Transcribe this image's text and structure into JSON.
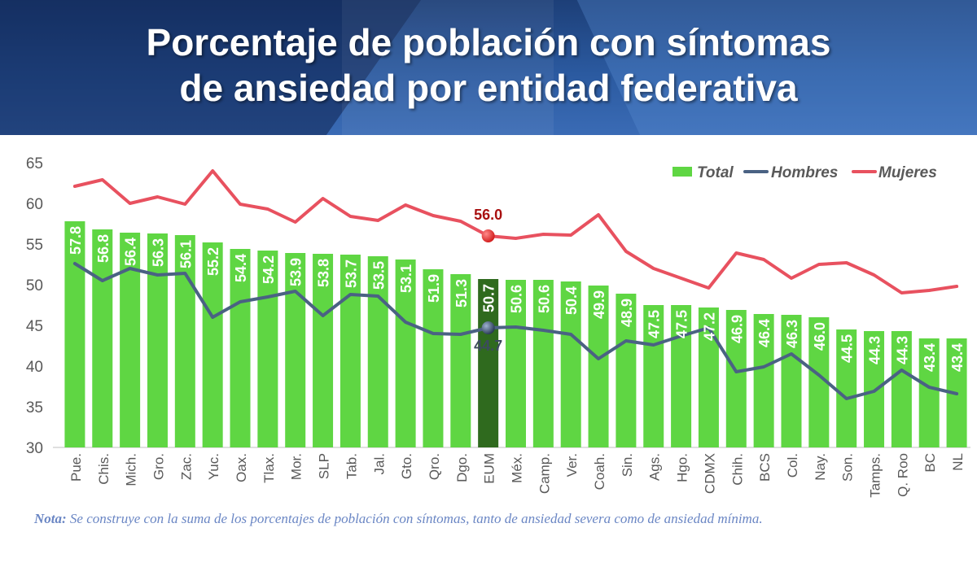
{
  "header": {
    "title_line1": "Porcentaje de población con síntomas",
    "title_line2": "de ansiedad por entidad federativa"
  },
  "note": {
    "label": "Nota:",
    "text": " Se construye con la suma de los porcentajes de población con síntomas, tanto de ansiedad severa como de ansiedad mínima."
  },
  "colors": {
    "total_bar": "#5fd643",
    "highlight_bar": "#2f6a1e",
    "hombres": "#4a6283",
    "mujeres": "#e8515f",
    "highlight_mujeres_dot": "#d01818",
    "highlight_mujeres_label": "#a81010",
    "axis_text": "#595959"
  },
  "chart_data": {
    "type": "bar",
    "categories": [
      "Pue.",
      "Chis.",
      "Mich.",
      "Gro.",
      "Zac.",
      "Yuc.",
      "Oax.",
      "Tlax.",
      "Mor.",
      "SLP",
      "Tab.",
      "Jal.",
      "Gto.",
      "Qro.",
      "Dgo.",
      "EUM",
      "Méx.",
      "Camp.",
      "Ver.",
      "Coah.",
      "Sin.",
      "Ags.",
      "Hgo.",
      "CDMX",
      "Chih.",
      "BCS",
      "Col.",
      "Nay.",
      "Son.",
      "Tamps.",
      "Q. Roo",
      "BC",
      "NL"
    ],
    "highlight_category": "EUM",
    "ylim": [
      30,
      65
    ],
    "yticks": [
      30,
      35,
      40,
      45,
      50,
      55,
      60,
      65
    ],
    "grid": false,
    "legend_position": "top-right",
    "series": [
      {
        "name": "Total",
        "kind": "bar",
        "values": [
          57.8,
          56.8,
          56.4,
          56.3,
          56.1,
          55.2,
          54.4,
          54.2,
          53.9,
          53.8,
          53.7,
          53.5,
          53.1,
          51.9,
          51.3,
          50.7,
          50.6,
          50.6,
          50.4,
          49.9,
          48.9,
          47.5,
          47.5,
          47.2,
          46.9,
          46.4,
          46.3,
          46.0,
          44.5,
          44.3,
          44.3,
          43.4,
          43.4
        ],
        "labels": [
          "57.8",
          "56.8",
          "56.4",
          "56.3",
          "56.1",
          "55.2",
          "54.4",
          "54.2",
          "53.9",
          "53.8",
          "53.7",
          "53.5",
          "53.1",
          "51.9",
          "51.3",
          "50.7",
          "50.6",
          "50.6",
          "50.4",
          "49.9",
          "48.9",
          "47.5",
          "47.5",
          "47.2",
          "46.9",
          "46.4",
          "46.3",
          "46.0",
          "44.5",
          "44.3",
          "44.3",
          "43.4",
          "43.4"
        ]
      },
      {
        "name": "Hombres",
        "kind": "line",
        "values": [
          52.6,
          50.5,
          52.0,
          51.2,
          51.4,
          46.0,
          47.9,
          48.5,
          49.2,
          46.2,
          48.8,
          48.6,
          45.4,
          44.0,
          43.9,
          44.7,
          44.8,
          44.4,
          43.9,
          40.9,
          43.1,
          42.6,
          43.7,
          44.7,
          39.3,
          39.9,
          41.5,
          38.9,
          36.0,
          36.9,
          39.5,
          37.4,
          36.6
        ],
        "highlight_label": "44.7"
      },
      {
        "name": "Mujeres",
        "kind": "line",
        "values": [
          62.1,
          62.9,
          60.0,
          60.8,
          59.9,
          64.0,
          59.9,
          59.3,
          57.7,
          60.6,
          58.4,
          57.9,
          59.8,
          58.5,
          57.8,
          56.0,
          55.7,
          56.2,
          56.1,
          58.6,
          54.1,
          52.0,
          50.8,
          49.6,
          53.9,
          53.1,
          50.8,
          52.5,
          52.7,
          51.2,
          49.0,
          49.3,
          49.8
        ],
        "highlight_label": "56.0"
      }
    ]
  }
}
